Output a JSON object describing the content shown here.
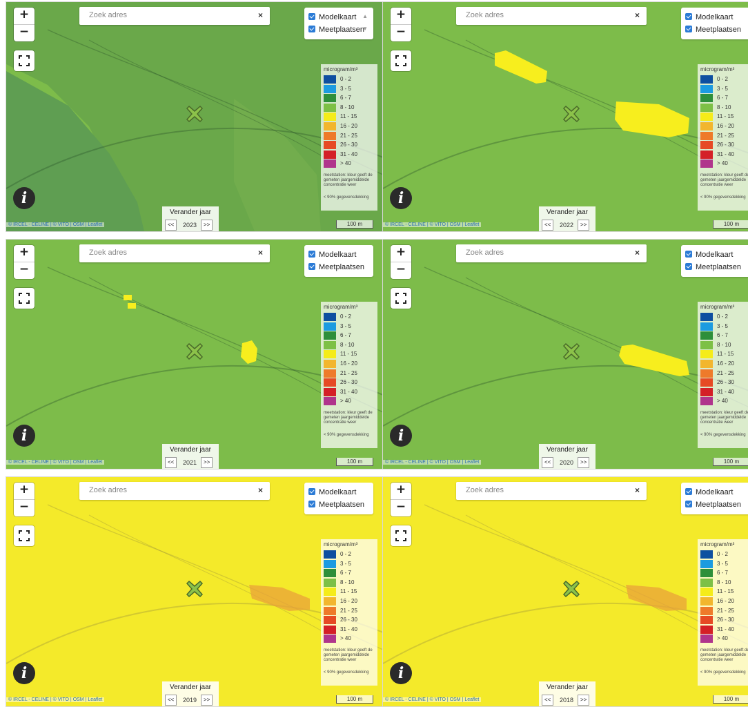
{
  "controls": {
    "zoom_in": "+",
    "zoom_out": "−",
    "search_placeholder": "Zoek adres",
    "search_clear": "×",
    "layer_modelkaart": "Modelkaart",
    "layer_meetplaatsen": "Meetplaatsen",
    "arrow_up": "▲",
    "arrow_down": "▼"
  },
  "legend": {
    "unit": "microgram/m³",
    "classes": [
      {
        "label": "0 - 2",
        "color": "#0e4fa0"
      },
      {
        "label": "3 - 5",
        "color": "#1c9be0"
      },
      {
        "label": "6 - 7",
        "color": "#2e8f3a"
      },
      {
        "label": "8 - 10",
        "color": "#7dc046"
      },
      {
        "label": "11 - 15",
        "color": "#f5ec19"
      },
      {
        "label": "16 - 20",
        "color": "#f2b62e"
      },
      {
        "label": "21 - 25",
        "color": "#ee7a2a"
      },
      {
        "label": "26 - 30",
        "color": "#e64a24"
      },
      {
        "label": "31 - 40",
        "color": "#d42027"
      },
      {
        "label": "> 40",
        "color": "#b0358c"
      }
    ],
    "note_station": "meetstation: kleur geeft de gemeten jaargemiddelde concentratie weer",
    "note_coverage": "< 90% gegevensdekking"
  },
  "year_control": {
    "title": "Verander jaar",
    "prev": "<<",
    "next": ">>"
  },
  "attribution": "© IRCEL - CELINE | © VITO | OSM | Leaflet",
  "scale_label": "100 m",
  "colors": {
    "green_dark": "#6aa84a",
    "green_mid": "#7dbc4a",
    "yellow": "#f4ea2a",
    "yellow_bright": "#f7ee1e",
    "orange_patch": "#e9a13a",
    "marker_fill": "#8cc24a"
  },
  "panels": [
    {
      "year": "2023",
      "theme": "green_dark"
    },
    {
      "year": "2022",
      "theme": "green_yellow_patches"
    },
    {
      "year": "2021",
      "theme": "green_small_patches"
    },
    {
      "year": "2020",
      "theme": "green_one_patch"
    },
    {
      "year": "2019",
      "theme": "yellow_orange_patch"
    },
    {
      "year": "2018",
      "theme": "yellow_orange_patch"
    }
  ]
}
